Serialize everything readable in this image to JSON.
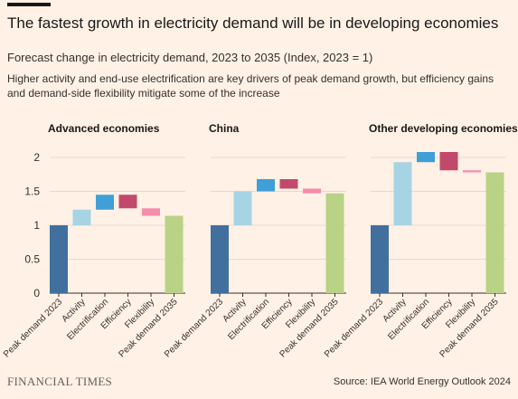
{
  "header": {
    "title": "The fastest growth in electricity demand will be in developing economies",
    "subtitle": "Forecast change in electricity demand, 2023 to 2035 (Index, 2023 = 1)",
    "description": "Higher activity and end-use electrification are key drivers of peak demand growth, but efficiency gains and demand-side flexibility mitigate some of the increase"
  },
  "footer": {
    "brand": "FINANCIAL TIMES",
    "source": "Source: IEA World Energy Outlook 2024"
  },
  "colors": {
    "background": "#fff1e5",
    "base_bar": "#416f9e",
    "activity": "#a6d4e4",
    "electrification": "#3f9fd6",
    "efficiency": "#c2496c",
    "flexibility": "#f58cab",
    "total_bar": "#b9d285",
    "grid": "#e6d9ce"
  },
  "chart_data": {
    "type": "bar",
    "subtype": "waterfall",
    "ylim": [
      0,
      2
    ],
    "yticks": [
      "0",
      "0.5",
      "1",
      "1.5",
      "2"
    ],
    "categories": [
      "Peak demand 2023",
      "Activity",
      "Electrification",
      "Efficiency",
      "Flexibility",
      "Peak demand 2035"
    ],
    "panels": [
      {
        "title": "Advanced economies",
        "steps": [
          {
            "category": "Peak demand 2023",
            "kind": "base",
            "value": 1.0
          },
          {
            "category": "Activity",
            "kind": "delta",
            "value": 0.23
          },
          {
            "category": "Electrification",
            "kind": "delta",
            "value": 0.22
          },
          {
            "category": "Efficiency",
            "kind": "delta",
            "value": -0.2
          },
          {
            "category": "Flexibility",
            "kind": "delta",
            "value": -0.11
          },
          {
            "category": "Peak demand 2035",
            "kind": "total",
            "value": 1.14
          }
        ]
      },
      {
        "title": "China",
        "steps": [
          {
            "category": "Peak demand 2023",
            "kind": "base",
            "value": 1.0
          },
          {
            "category": "Activity",
            "kind": "delta",
            "value": 0.5
          },
          {
            "category": "Electrification",
            "kind": "delta",
            "value": 0.18
          },
          {
            "category": "Efficiency",
            "kind": "delta",
            "value": -0.14
          },
          {
            "category": "Flexibility",
            "kind": "delta",
            "value": -0.07
          },
          {
            "category": "Peak demand 2035",
            "kind": "total",
            "value": 1.47
          }
        ]
      },
      {
        "title": "Other developing economies",
        "steps": [
          {
            "category": "Peak demand 2023",
            "kind": "base",
            "value": 1.0
          },
          {
            "category": "Activity",
            "kind": "delta",
            "value": 0.93
          },
          {
            "category": "Electrification",
            "kind": "delta",
            "value": 0.15
          },
          {
            "category": "Efficiency",
            "kind": "delta",
            "value": -0.27
          },
          {
            "category": "Flexibility",
            "kind": "delta",
            "value": -0.03
          },
          {
            "category": "Peak demand 2035",
            "kind": "total",
            "value": 1.78
          }
        ]
      }
    ]
  }
}
